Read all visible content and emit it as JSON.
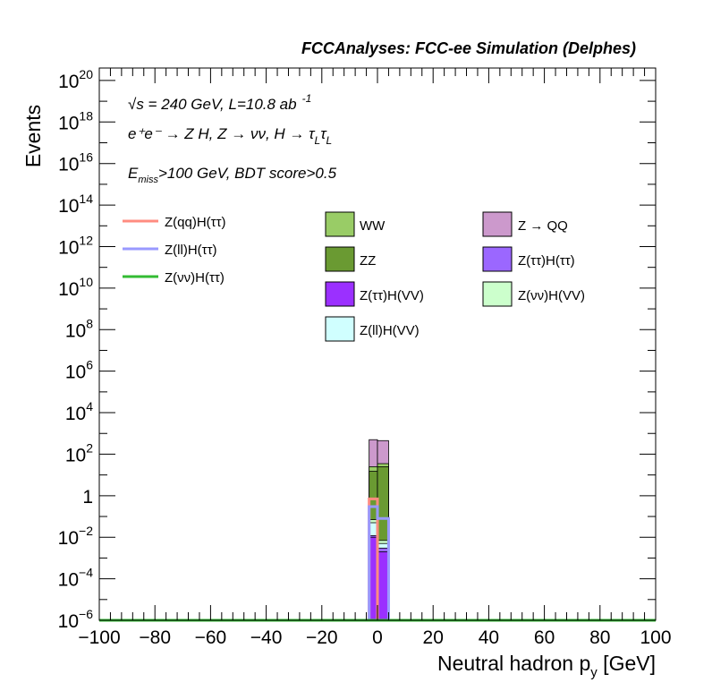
{
  "chart_data": {
    "type": "bar",
    "title": "FCCAnalyses: FCC-ee Simulation (Delphes)",
    "xlabel": "Neutral hadron p",
    "xlabel_sub": "y",
    "xlabel_unit": " [GeV]",
    "ylabel": "Events",
    "xlim": [
      -100,
      100
    ],
    "ylog": true,
    "ylim_exp": [
      -6,
      20.6
    ],
    "x_ticks": [
      {
        "v": -100,
        "label": "−100"
      },
      {
        "v": -80,
        "label": "−80"
      },
      {
        "v": -60,
        "label": "−60"
      },
      {
        "v": -40,
        "label": "−40"
      },
      {
        "v": -20,
        "label": "−20"
      },
      {
        "v": 0,
        "label": "0"
      },
      {
        "v": 20,
        "label": "20"
      },
      {
        "v": 40,
        "label": "40"
      },
      {
        "v": 60,
        "label": "60"
      },
      {
        "v": 80,
        "label": "80"
      },
      {
        "v": 100,
        "label": "100"
      }
    ],
    "y_ticks": [
      {
        "exp": 20,
        "base": "10",
        "sup": "20"
      },
      {
        "exp": 18,
        "base": "10",
        "sup": "18"
      },
      {
        "exp": 16,
        "base": "10",
        "sup": "16"
      },
      {
        "exp": 14,
        "base": "10",
        "sup": "14"
      },
      {
        "exp": 12,
        "base": "10",
        "sup": "12"
      },
      {
        "exp": 10,
        "base": "10",
        "sup": "10"
      },
      {
        "exp": 8,
        "base": "10",
        "sup": "8"
      },
      {
        "exp": 6,
        "base": "10",
        "sup": "6"
      },
      {
        "exp": 4,
        "base": "10",
        "sup": "4"
      },
      {
        "exp": 2,
        "base": "10",
        "sup": "2"
      },
      {
        "exp": 0,
        "base": "1",
        "sup": ""
      },
      {
        "exp": -2,
        "base": "10",
        "sup": "−2"
      },
      {
        "exp": -4,
        "base": "10",
        "sup": "−4"
      },
      {
        "exp": -6,
        "base": "10",
        "sup": "−6"
      }
    ],
    "stack_bins": [
      {
        "x0": -3,
        "x1": 0,
        "layers": [
          {
            "name": "Z(ττ)H(VV)",
            "top": 0.01,
            "color": "#9b30ff"
          },
          {
            "name": "Z(ττ)H(ττ)",
            "top": 0.012,
            "color": "#9b67ff"
          },
          {
            "name": "Z(ll)H(VV)",
            "top": 0.05,
            "color": "#d0ffff"
          },
          {
            "name": "Z(νν)H(VV)",
            "top": 0.07,
            "color": "#ccffcc"
          },
          {
            "name": "ZZ",
            "top": 15,
            "color": "#6a9a32"
          },
          {
            "name": "WW",
            "top": 25,
            "color": "#99cc66"
          },
          {
            "name": "Z → QQ",
            "top": 500,
            "color": "#cc99cc"
          }
        ]
      },
      {
        "x0": 0,
        "x1": 4,
        "layers": [
          {
            "name": "Z(ττ)H(VV)",
            "top": 0.002,
            "color": "#9b30ff"
          },
          {
            "name": "Z(ττ)H(ττ)",
            "top": 0.003,
            "color": "#9b67ff"
          },
          {
            "name": "Z(ll)H(VV)",
            "top": 0.005,
            "color": "#d0ffff"
          },
          {
            "name": "Z(νν)H(VV)",
            "top": 0.007,
            "color": "#ccffcc"
          },
          {
            "name": "ZZ",
            "top": 25,
            "color": "#6a9a32"
          },
          {
            "name": "WW",
            "top": 35,
            "color": "#99cc66"
          },
          {
            "name": "Z → QQ",
            "top": 450,
            "color": "#cc99cc"
          }
        ]
      }
    ],
    "lines": [
      {
        "name": "Z(qq)H(ττ)",
        "color": "#ff8c80",
        "bins": [
          {
            "x0": -3,
            "x1": 0,
            "v": 0.7
          },
          {
            "x0": 0,
            "x1": 4,
            "v": 1e-06
          }
        ]
      },
      {
        "name": "Z(ll)H(ττ)",
        "color": "#9999ff",
        "bins": [
          {
            "x0": -3,
            "x1": 0,
            "v": 0.3
          },
          {
            "x0": 0,
            "x1": 4,
            "v": 0.08
          }
        ]
      },
      {
        "name": "Z(νν)H(ττ)",
        "color": "#33bb33",
        "bins": [
          {
            "x0": -100,
            "x1": 100,
            "v": 1e-06
          }
        ]
      }
    ],
    "legend_lines": [
      {
        "label": "Z(qq)H(ττ)",
        "color": "#ff8c80"
      },
      {
        "label": "Z(ll)H(ττ)",
        "color": "#9999ff"
      },
      {
        "label": "Z(νν)H(ττ)",
        "color": "#33bb33"
      }
    ],
    "legend_boxes_col1": [
      {
        "label": "WW",
        "color": "#99cc66"
      },
      {
        "label": "ZZ",
        "color": "#6a9a32"
      },
      {
        "label": "Z(ττ)H(VV)",
        "color": "#9b30ff"
      },
      {
        "label": "Z(ll)H(VV)",
        "color": "#d0ffff"
      }
    ],
    "legend_boxes_col2": [
      {
        "label": "Z → QQ",
        "color": "#cc99cc"
      },
      {
        "label": "Z(ττ)H(ττ)",
        "color": "#9b67ff"
      },
      {
        "label": "Z(νν)H(VV)",
        "color": "#ccffcc"
      }
    ],
    "annotations": {
      "energy_prefix": "√s = 240 GeV, L=10.8 ab",
      "energy_sup": "-1",
      "process": "e⁺e⁻ → Z H, Z → νν, H → τ",
      "process_sub1": "L",
      "process_tau2": "τ",
      "process_sub2": "L",
      "cut_E": "E",
      "cut_sub": "miss",
      "cut_rest": ">100 GeV, BDT score>0.5"
    }
  }
}
